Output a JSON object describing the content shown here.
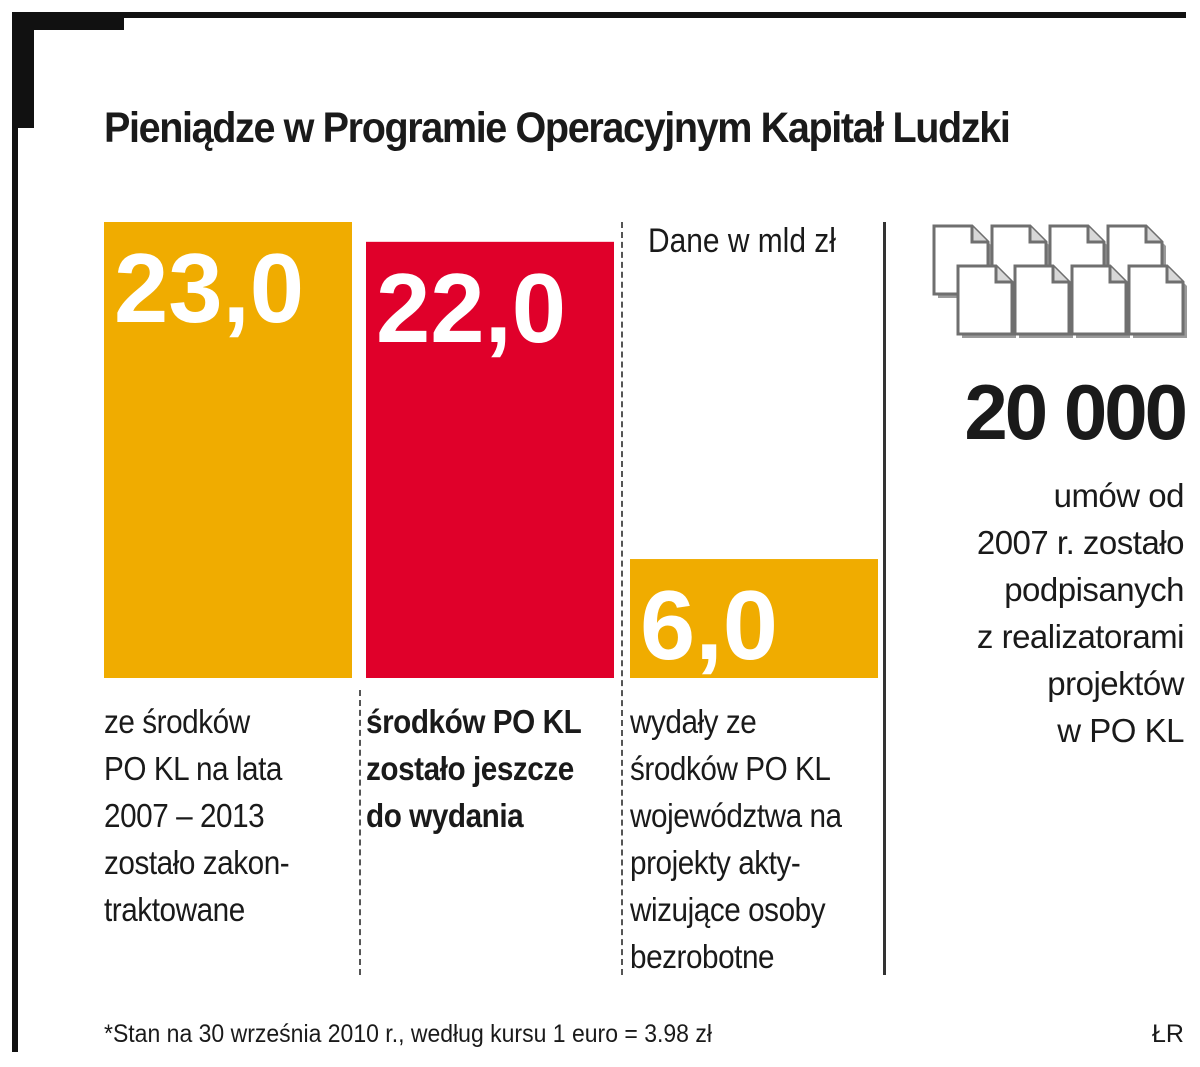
{
  "title": "Pieniądze w Programie Operacyjnym Kapitał Ludzki",
  "unit_label": "Dane w mld zł",
  "chart_data": {
    "type": "bar",
    "categories": [
      "23,0",
      "22,0",
      "6,0"
    ],
    "values": [
      23.0,
      22.0,
      6.0
    ],
    "value_labels": [
      "23,0",
      "22,0",
      "6,0"
    ],
    "colors": [
      "#f0ac00",
      "#e0002a",
      "#f0ac00"
    ],
    "ylim": [
      0,
      23.0
    ],
    "grid": false,
    "title": "Pieniądze w Programie Operacyjnym Kapitał Ludzki",
    "unit": "Dane w mld zł"
  },
  "descriptions": [
    {
      "lines": [
        "ze środków",
        "PO KL  na lata",
        "2007 – 2013",
        "zostało zakon-",
        "traktowane"
      ]
    },
    {
      "lines": [
        "środków PO KL",
        "zostało jeszcze",
        "do wydania"
      ]
    },
    {
      "lines": [
        "wydały ze",
        "środków PO KL",
        "województwa na",
        "projekty akty-",
        "wizujące osoby",
        "bezrobotne"
      ]
    }
  ],
  "contracts": {
    "icon": "document-stack-icon",
    "value": "20 000",
    "lines": [
      "umów od",
      "2007 r. zostało",
      "podpisanych",
      "z realizatorami",
      "projektów",
      "w PO KL"
    ]
  },
  "footnote": "*Stan na 30 września 2010 r., według kursu 1 euro = 3.98 zł",
  "credit": "ŁR"
}
